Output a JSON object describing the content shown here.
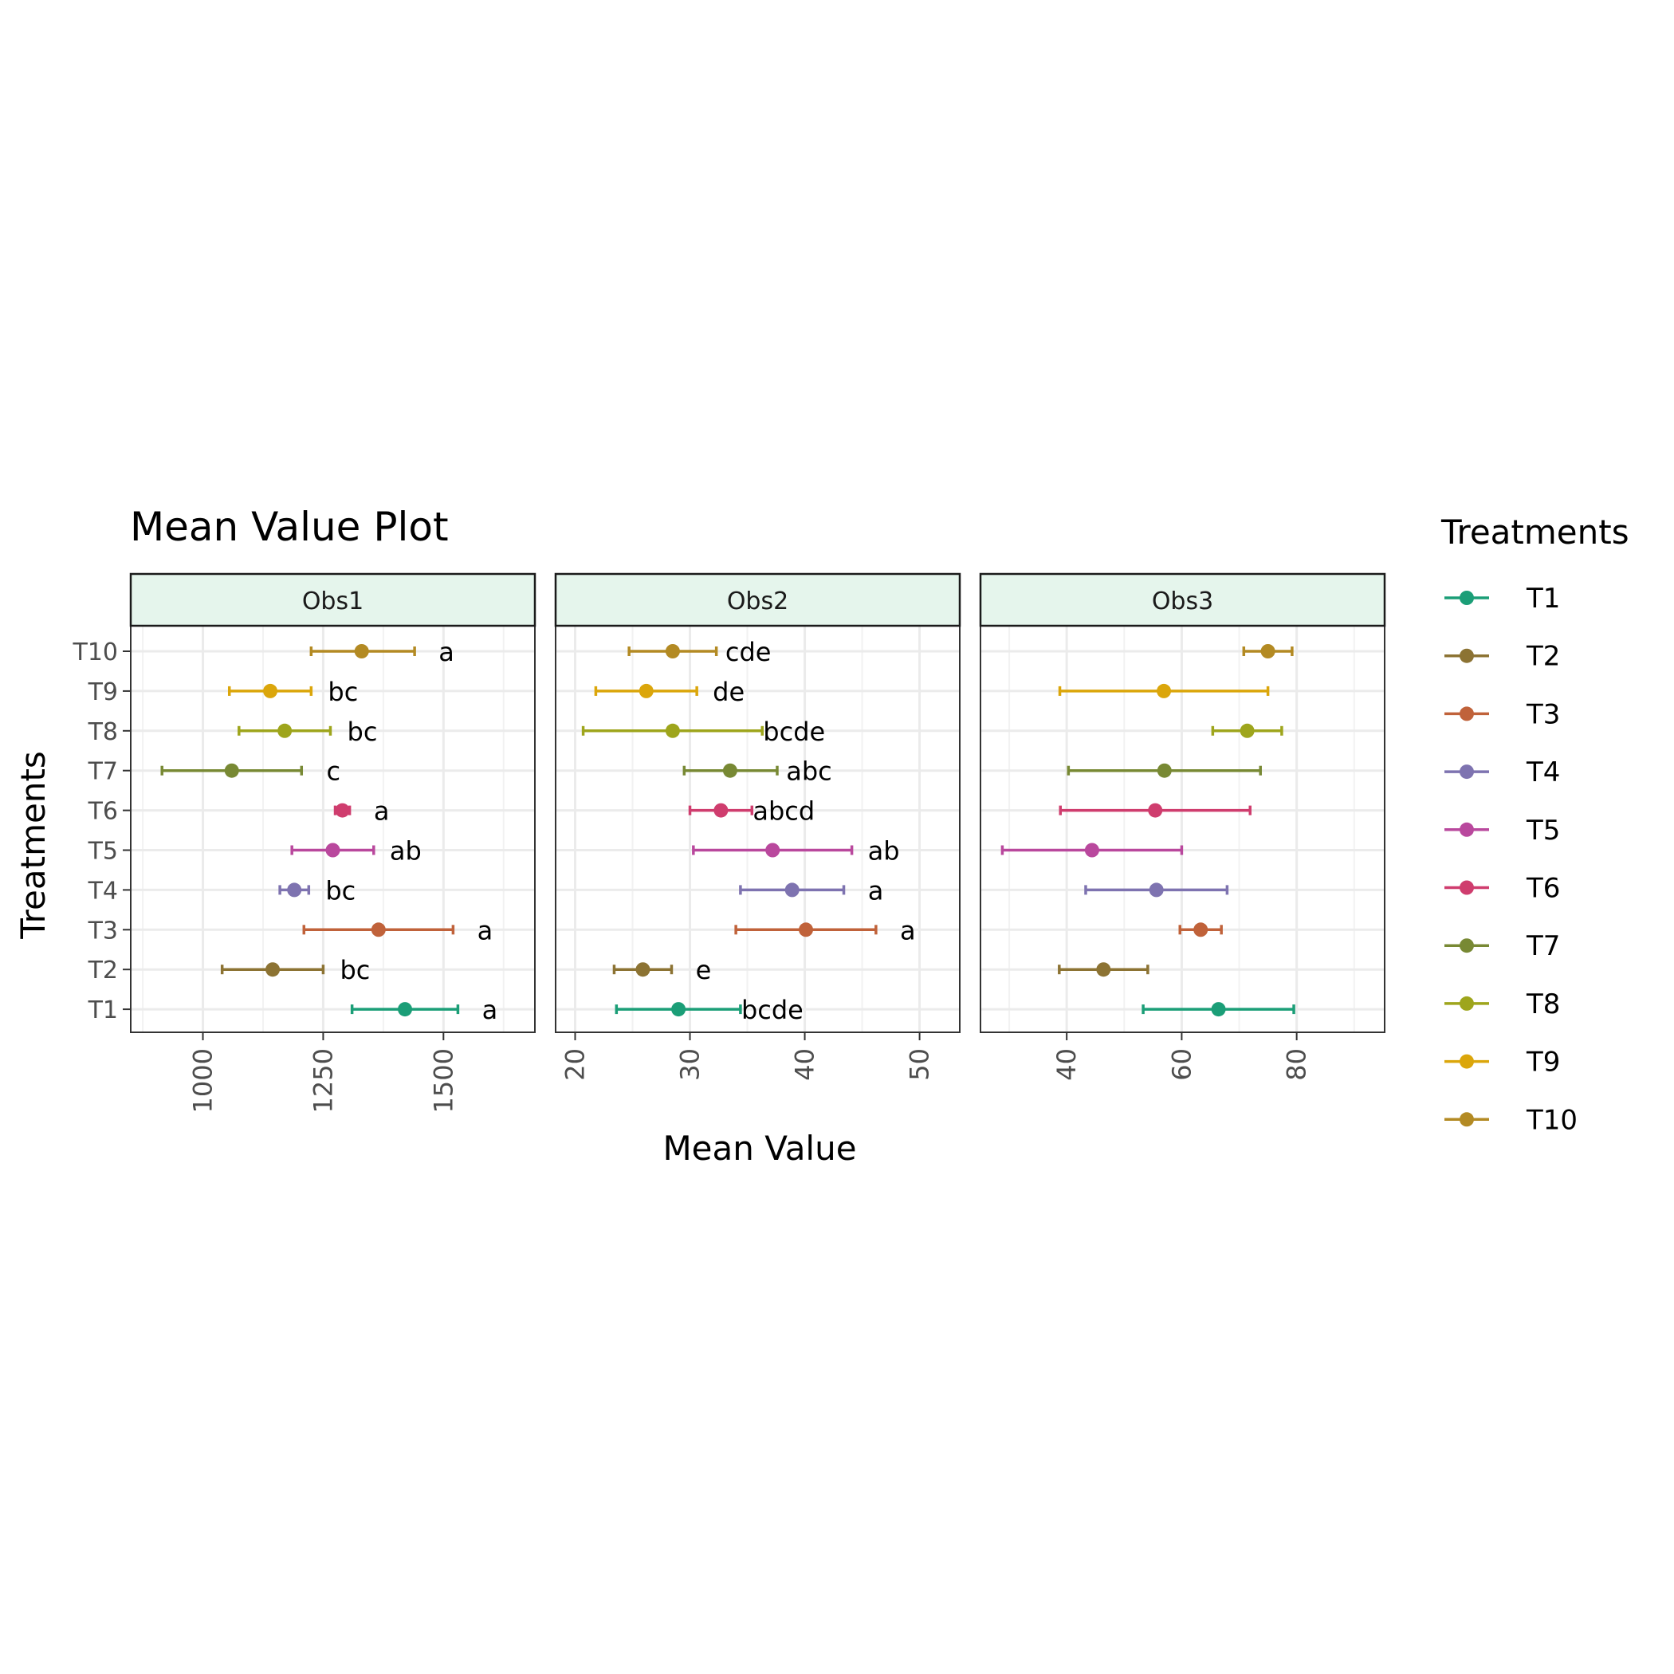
{
  "chart_data": {
    "type": "scatter",
    "title": "Mean Value Plot",
    "xlabel": "Mean Value",
    "ylabel": "Treatments",
    "legend": {
      "title": "Treatments",
      "placement": "right",
      "items": [
        "T1",
        "T2",
        "T3",
        "T4",
        "T5",
        "T6",
        "T7",
        "T8",
        "T9",
        "T10"
      ]
    },
    "categories": [
      "T1",
      "T2",
      "T3",
      "T4",
      "T5",
      "T6",
      "T7",
      "T8",
      "T9",
      "T10"
    ],
    "colors": {
      "T1": "#1B9E77",
      "T2": "#8C7333",
      "T3": "#C0623A",
      "T4": "#7E73B0",
      "T5": "#B9489D",
      "T6": "#CF3D6E",
      "T7": "#788934",
      "T8": "#9EA51C",
      "T9": "#DBA60B",
      "T10": "#B38A23"
    },
    "strip_fill": "#E5F5EC",
    "grid": true,
    "facets": [
      {
        "name": "Obs1",
        "xlim": [
          850,
          1690
        ],
        "xticks": [
          1000,
          1250,
          1500
        ],
        "points": [
          {
            "treatment": "T1",
            "mean": 1420,
            "lo": 1310,
            "hi": 1530,
            "group": "a"
          },
          {
            "treatment": "T2",
            "mean": 1145,
            "lo": 1040,
            "hi": 1250,
            "group": "bc"
          },
          {
            "treatment": "T3",
            "mean": 1365,
            "lo": 1210,
            "hi": 1520,
            "group": "a"
          },
          {
            "treatment": "T4",
            "mean": 1190,
            "lo": 1160,
            "hi": 1220,
            "group": "bc"
          },
          {
            "treatment": "T5",
            "mean": 1270,
            "lo": 1185,
            "hi": 1355,
            "group": "ab"
          },
          {
            "treatment": "T6",
            "mean": 1290,
            "lo": 1275,
            "hi": 1305,
            "group": "a"
          },
          {
            "treatment": "T7",
            "mean": 1060,
            "lo": 915,
            "hi": 1205,
            "group": "c"
          },
          {
            "treatment": "T8",
            "mean": 1170,
            "lo": 1075,
            "hi": 1265,
            "group": "bc"
          },
          {
            "treatment": "T9",
            "mean": 1140,
            "lo": 1055,
            "hi": 1225,
            "group": "bc"
          },
          {
            "treatment": "T10",
            "mean": 1330,
            "lo": 1225,
            "hi": 1440,
            "group": "a"
          }
        ]
      },
      {
        "name": "Obs2",
        "xlim": [
          18.3,
          53.5
        ],
        "xticks": [
          20,
          30,
          40,
          50
        ],
        "points": [
          {
            "treatment": "T1",
            "mean": 29.0,
            "lo": 23.6,
            "hi": 34.4,
            "group": "bcde"
          },
          {
            "treatment": "T2",
            "mean": 25.9,
            "lo": 23.4,
            "hi": 28.4,
            "group": "e"
          },
          {
            "treatment": "T3",
            "mean": 40.1,
            "lo": 34.0,
            "hi": 46.2,
            "group": "a"
          },
          {
            "treatment": "T4",
            "mean": 38.9,
            "lo": 34.4,
            "hi": 43.4,
            "group": "a"
          },
          {
            "treatment": "T5",
            "mean": 37.2,
            "lo": 30.3,
            "hi": 44.1,
            "group": "ab"
          },
          {
            "treatment": "T6",
            "mean": 32.7,
            "lo": 30.0,
            "hi": 35.4,
            "group": "abcd"
          },
          {
            "treatment": "T7",
            "mean": 33.5,
            "lo": 29.5,
            "hi": 37.6,
            "group": "abc"
          },
          {
            "treatment": "T8",
            "mean": 28.5,
            "lo": 20.7,
            "hi": 36.3,
            "group": "bcde"
          },
          {
            "treatment": "T9",
            "mean": 26.2,
            "lo": 21.8,
            "hi": 30.6,
            "group": "de"
          },
          {
            "treatment": "T10",
            "mean": 28.5,
            "lo": 24.7,
            "hi": 32.3,
            "group": "cde"
          }
        ]
      },
      {
        "name": "Obs3",
        "xlim": [
          25,
          95.3
        ],
        "xticks": [
          40,
          60,
          80
        ],
        "points": [
          {
            "treatment": "T1",
            "mean": 66.4,
            "lo": 53.3,
            "hi": 79.5,
            "group": ""
          },
          {
            "treatment": "T2",
            "mean": 46.4,
            "lo": 38.7,
            "hi": 54.1,
            "group": ""
          },
          {
            "treatment": "T3",
            "mean": 63.3,
            "lo": 59.7,
            "hi": 66.9,
            "group": ""
          },
          {
            "treatment": "T4",
            "mean": 55.6,
            "lo": 43.3,
            "hi": 67.9,
            "group": ""
          },
          {
            "treatment": "T5",
            "mean": 44.4,
            "lo": 28.8,
            "hi": 60.0,
            "group": ""
          },
          {
            "treatment": "T6",
            "mean": 55.4,
            "lo": 38.9,
            "hi": 71.9,
            "group": ""
          },
          {
            "treatment": "T7",
            "mean": 57.0,
            "lo": 40.3,
            "hi": 73.7,
            "group": ""
          },
          {
            "treatment": "T8",
            "mean": 71.4,
            "lo": 65.4,
            "hi": 77.4,
            "group": ""
          },
          {
            "treatment": "T9",
            "mean": 56.9,
            "lo": 38.8,
            "hi": 75.0,
            "group": ""
          },
          {
            "treatment": "T10",
            "mean": 75.0,
            "lo": 70.8,
            "hi": 79.2,
            "group": ""
          }
        ]
      }
    ]
  }
}
